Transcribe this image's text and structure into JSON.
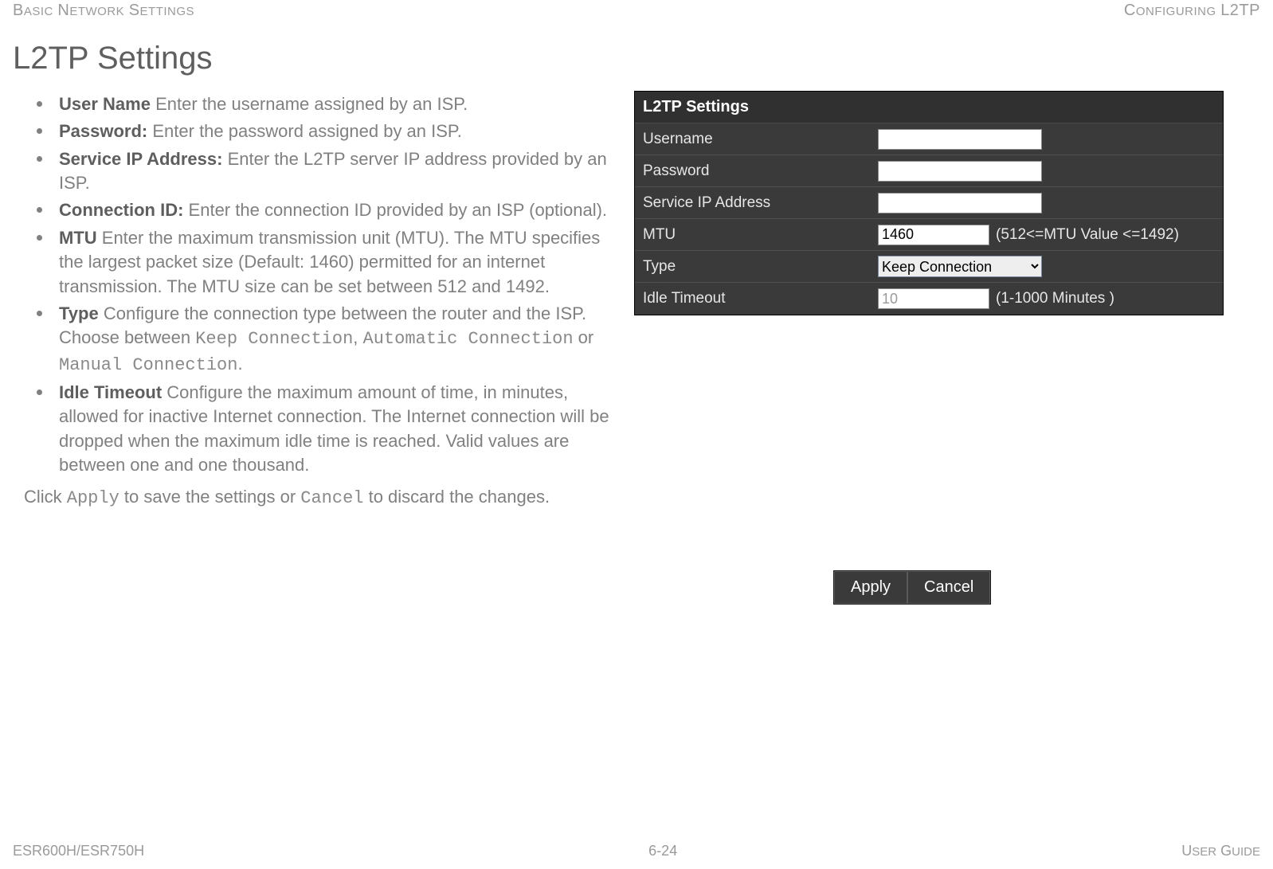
{
  "header": {
    "left": "BASIC NETWORK SETTINGS",
    "right": "CONFIGURING L2TP"
  },
  "heading": "L2TP Settings",
  "defs": {
    "user_name_label": "User Name",
    "user_name_text": "  Enter the username assigned by an ISP.",
    "password_label": "Password:",
    "password_text": " Enter the password assigned by an ISP.",
    "service_ip_label": "Service IP Address:",
    "service_ip_text": " Enter the L2TP server IP address provided by an ISP.",
    "conn_id_label": "Connection ID:",
    "conn_id_text": " Enter the connection ID provided by an ISP (optional).",
    "mtu_label": "MTU",
    "mtu_text": "  Enter the maximum transmission unit (MTU). The MTU specifies the largest packet size (Default: 1460) permitted for an internet transmission.  The MTU size can be set between 512 and 1492.",
    "type_label": "Type",
    "type_text_a": "  Configure the connection type between the router and the ISP. Choose between ",
    "type_mono1": "Keep Connection",
    "type_sep1": ", ",
    "type_mono2": "Automatic Connection",
    "type_sep2": " or ",
    "type_mono3": "Manual Connection",
    "type_end": ".",
    "idle_label": "Idle Timeout",
    "idle_text": "  Configure the maximum amount of time, in minutes, allowed for inactive Internet connection. The Internet connection will be dropped when the maximum idle time is reached. Valid values are between one and one thousand."
  },
  "trailing": {
    "a": "Click ",
    "apply": "Apply",
    "b": " to save the settings or ",
    "cancel": "Cancel",
    "c": " to discard the changes."
  },
  "panel": {
    "title": "L2TP Settings",
    "rows": {
      "username": "Username",
      "password": "Password",
      "service_ip": "Service IP Address",
      "mtu_label": "MTU",
      "mtu_value": "1460",
      "mtu_hint": "(512<=MTU Value <=1492)",
      "type_label": "Type",
      "type_value": "Keep Connection",
      "idle_label": "Idle Timeout",
      "idle_value": "10",
      "idle_hint": "(1-1000 Minutes )"
    }
  },
  "buttons": {
    "apply": "Apply",
    "cancel": "Cancel"
  },
  "footer": {
    "left": "ESR600H/ESR750H",
    "center": "6-24",
    "right": "USER GUIDE"
  },
  "colors": {
    "text_gray": "#808080",
    "heading_gray": "#5f5f5f",
    "panel_bg": "#3a3a3a",
    "panel_border": "#4e4e4e",
    "panel_text": "#e6e6e6"
  }
}
